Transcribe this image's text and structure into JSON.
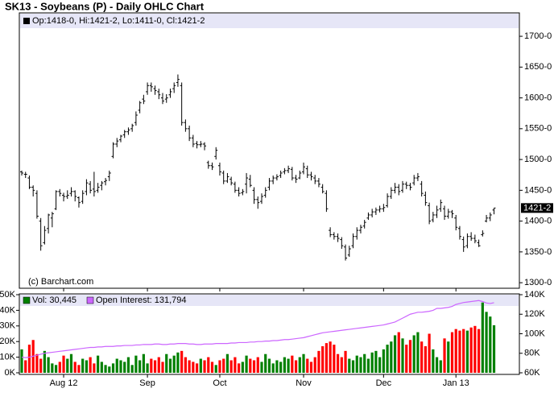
{
  "chart_data": [
    {
      "type": "ohlc",
      "title": "SK13 - Soybeans (P) - Daily OHLC Chart",
      "header": "Op:1418-0, Hi:1421-2, Lo:1411-0, Cl:1421-2",
      "credit": "(c) Barchart.com",
      "color": "#000000",
      "ylim": [
        1291,
        1738
      ],
      "yticks": [
        {
          "value": 1300,
          "label": "1300-0"
        },
        {
          "value": 1350,
          "label": "1350-0"
        },
        {
          "value": 1400,
          "label": "1400-0"
        },
        {
          "value": 1450,
          "label": "1450-0"
        },
        {
          "value": 1500,
          "label": "1500-0"
        },
        {
          "value": 1550,
          "label": "1550-0"
        },
        {
          "value": 1600,
          "label": "1600-0"
        },
        {
          "value": 1650,
          "label": "1650-0"
        },
        {
          "value": 1700,
          "label": "1700-0"
        }
      ],
      "last_price": {
        "value": 1421.25,
        "label": "1421-2"
      },
      "open": [
        1480,
        1476,
        1470,
        1455,
        1445,
        1400,
        1365,
        1388,
        1405,
        1420,
        1448,
        1442,
        1440,
        1445,
        1448,
        1438,
        1432,
        1448,
        1460,
        1452,
        1450,
        1458,
        1464,
        1472,
        1505,
        1525,
        1532,
        1540,
        1545,
        1550,
        1560,
        1580,
        1598,
        1610,
        1620,
        1615,
        1610,
        1600,
        1598,
        1605,
        1615,
        1625,
        1620,
        1560,
        1550,
        1535,
        1526,
        1524,
        1525,
        1495,
        1490,
        1505,
        1490,
        1478,
        1465,
        1468,
        1460,
        1450,
        1446,
        1460,
        1468,
        1450,
        1435,
        1432,
        1442,
        1455,
        1465,
        1470,
        1474,
        1480,
        1482,
        1484,
        1470,
        1470,
        1480,
        1485,
        1475,
        1470,
        1465,
        1455,
        1445,
        1385,
        1378,
        1375,
        1370,
        1358,
        1345,
        1360,
        1375,
        1385,
        1392,
        1405,
        1410,
        1415,
        1418,
        1420,
        1425,
        1440,
        1450,
        1455,
        1450,
        1460,
        1458,
        1462,
        1470,
        1460,
        1442,
        1425,
        1402,
        1410,
        1420,
        1420,
        1408,
        1415,
        1405,
        1388,
        1370,
        1360,
        1375,
        1372,
        1365,
        1378,
        1400,
        1405,
        1418
      ],
      "high": [
        1482,
        1480,
        1474,
        1458,
        1450,
        1405,
        1392,
        1412,
        1415,
        1450,
        1452,
        1446,
        1450,
        1455,
        1450,
        1440,
        1450,
        1468,
        1465,
        1480,
        1462,
        1465,
        1470,
        1482,
        1528,
        1535,
        1540,
        1548,
        1552,
        1558,
        1578,
        1595,
        1605,
        1625,
        1625,
        1620,
        1615,
        1608,
        1606,
        1615,
        1625,
        1638,
        1625,
        1565,
        1555,
        1540,
        1530,
        1530,
        1528,
        1498,
        1495,
        1520,
        1495,
        1482,
        1478,
        1472,
        1464,
        1455,
        1452,
        1478,
        1475,
        1455,
        1440,
        1445,
        1455,
        1470,
        1474,
        1476,
        1482,
        1486,
        1490,
        1488,
        1475,
        1482,
        1495,
        1490,
        1480,
        1475,
        1470,
        1460,
        1450,
        1390,
        1382,
        1380,
        1374,
        1362,
        1360,
        1380,
        1390,
        1394,
        1402,
        1414,
        1420,
        1422,
        1425,
        1428,
        1445,
        1455,
        1462,
        1460,
        1465,
        1464,
        1462,
        1475,
        1478,
        1465,
        1448,
        1430,
        1415,
        1425,
        1435,
        1425,
        1420,
        1418,
        1410,
        1392,
        1375,
        1380,
        1382,
        1378,
        1370,
        1385,
        1410,
        1414,
        1421.25
      ],
      "low": [
        1474,
        1470,
        1452,
        1440,
        1404,
        1352,
        1362,
        1380,
        1390,
        1418,
        1440,
        1432,
        1436,
        1440,
        1432,
        1422,
        1428,
        1442,
        1445,
        1440,
        1446,
        1450,
        1458,
        1465,
        1502,
        1520,
        1528,
        1535,
        1540,
        1545,
        1555,
        1575,
        1590,
        1605,
        1610,
        1605,
        1598,
        1590,
        1592,
        1600,
        1608,
        1618,
        1555,
        1545,
        1530,
        1520,
        1518,
        1520,
        1515,
        1485,
        1483,
        1500,
        1474,
        1460,
        1462,
        1458,
        1446,
        1440,
        1442,
        1445,
        1455,
        1428,
        1420,
        1428,
        1438,
        1450,
        1460,
        1466,
        1470,
        1476,
        1478,
        1466,
        1462,
        1468,
        1476,
        1470,
        1466,
        1460,
        1455,
        1445,
        1415,
        1374,
        1370,
        1366,
        1355,
        1336,
        1342,
        1356,
        1370,
        1380,
        1388,
        1402,
        1406,
        1410,
        1414,
        1415,
        1422,
        1436,
        1445,
        1442,
        1446,
        1452,
        1450,
        1458,
        1465,
        1440,
        1425,
        1395,
        1398,
        1405,
        1415,
        1402,
        1404,
        1405,
        1385,
        1370,
        1350,
        1356,
        1368,
        1364,
        1358,
        1375,
        1398,
        1400,
        1411
      ],
      "close": [
        1478,
        1476,
        1455,
        1450,
        1408,
        1360,
        1385,
        1410,
        1412,
        1448,
        1445,
        1440,
        1442,
        1448,
        1440,
        1430,
        1445,
        1462,
        1450,
        1448,
        1455,
        1462,
        1466,
        1478,
        1525,
        1530,
        1538,
        1545,
        1548,
        1555,
        1572,
        1592,
        1595,
        1620,
        1618,
        1612,
        1605,
        1595,
        1600,
        1610,
        1620,
        1630,
        1560,
        1550,
        1535,
        1525,
        1524,
        1525,
        1522,
        1490,
        1488,
        1515,
        1480,
        1465,
        1472,
        1462,
        1450,
        1445,
        1448,
        1470,
        1458,
        1435,
        1430,
        1440,
        1450,
        1465,
        1470,
        1472,
        1478,
        1482,
        1485,
        1470,
        1468,
        1478,
        1488,
        1475,
        1472,
        1465,
        1460,
        1448,
        1420,
        1378,
        1375,
        1372,
        1360,
        1340,
        1355,
        1375,
        1385,
        1390,
        1398,
        1410,
        1415,
        1418,
        1420,
        1422,
        1440,
        1450,
        1455,
        1448,
        1460,
        1458,
        1455,
        1470,
        1472,
        1445,
        1430,
        1400,
        1410,
        1418,
        1430,
        1408,
        1415,
        1412,
        1390,
        1375,
        1358,
        1375,
        1372,
        1368,
        1360,
        1380,
        1405,
        1410,
        1421.25
      ]
    },
    {
      "type": "bar",
      "categories": [
        null,
        null,
        null,
        null,
        null,
        null,
        null,
        null,
        null,
        null,
        null,
        "Aug 12",
        null,
        null,
        null,
        null,
        null,
        null,
        null,
        null,
        null,
        null,
        null,
        null,
        null,
        null,
        null,
        null,
        null,
        null,
        null,
        null,
        null,
        "Sep",
        null,
        null,
        null,
        null,
        null,
        null,
        null,
        null,
        null,
        null,
        null,
        null,
        null,
        null,
        null,
        null,
        null,
        null,
        "Oct",
        null,
        null,
        null,
        null,
        null,
        null,
        null,
        null,
        null,
        null,
        null,
        null,
        null,
        null,
        null,
        null,
        null,
        null,
        null,
        null,
        null,
        "Nov",
        null,
        null,
        null,
        null,
        null,
        null,
        null,
        null,
        null,
        null,
        null,
        null,
        null,
        null,
        null,
        null,
        null,
        null,
        null,
        null,
        "Dec",
        null,
        null,
        null,
        null,
        null,
        null,
        null,
        null,
        null,
        null,
        null,
        null,
        null,
        null,
        null,
        null,
        null,
        null,
        "Jan 13",
        null,
        null,
        null,
        null,
        null,
        null,
        null,
        null,
        null,
        null
      ],
      "ylim": [
        0,
        50000
      ],
      "yticks": [
        {
          "value": 0,
          "label": "0K"
        },
        {
          "value": 10000,
          "label": "10K"
        },
        {
          "value": 20000,
          "label": "20K"
        },
        {
          "value": 30000,
          "label": "30K"
        },
        {
          "value": 40000,
          "label": "40K"
        },
        {
          "value": 50000,
          "label": "50K"
        }
      ],
      "y2lim": [
        60000,
        140000
      ],
      "y2ticks": [
        {
          "value": 60000,
          "label": "60K"
        },
        {
          "value": 80000,
          "label": "80K"
        },
        {
          "value": 100000,
          "label": "100K"
        },
        {
          "value": 120000,
          "label": "120K"
        },
        {
          "value": 140000,
          "label": "140K"
        }
      ],
      "series": [
        {
          "name": "Vol: 30,445",
          "color": "#008000",
          "down_color": "#ff0000",
          "values": [
            15000,
            8000,
            18000,
            21000,
            12000,
            9000,
            14000,
            10000,
            6000,
            5000,
            7000,
            11000,
            9000,
            12000,
            7000,
            5000,
            9000,
            8000,
            10000,
            6000,
            11000,
            7000,
            5000,
            4000,
            6000,
            9000,
            8000,
            7000,
            10000,
            5000,
            11000,
            8000,
            12000,
            6000,
            9000,
            8000,
            10000,
            7000,
            12000,
            9000,
            11000,
            13000,
            14000,
            10000,
            8000,
            7000,
            6000,
            9000,
            8000,
            10000,
            7000,
            5000,
            8000,
            9000,
            12000,
            8000,
            10000,
            6000,
            7000,
            11000,
            9000,
            8000,
            10000,
            7000,
            12000,
            9000,
            6000,
            8000,
            7000,
            10000,
            9000,
            11000,
            8000,
            10000,
            12000,
            9000,
            7000,
            10000,
            14000,
            17000,
            19000,
            20000,
            18000,
            12000,
            10000,
            14000,
            9000,
            8000,
            11000,
            10000,
            12000,
            9000,
            13000,
            14000,
            10000,
            15000,
            18000,
            20000,
            24000,
            26000,
            22000,
            18000,
            21000,
            24000,
            26000,
            20000,
            17000,
            25000,
            15000,
            10000,
            8000,
            22000,
            20000,
            26000,
            28000,
            27000,
            28000,
            27000,
            29000,
            30000,
            28000,
            45000,
            39000,
            36000,
            30445
          ]
        },
        {
          "name": "Open Interest: 131,794",
          "color": "#cc66ff",
          "axis": "y2",
          "values": [
            76000,
            75500,
            76000,
            77000,
            78000,
            79000,
            80000,
            80500,
            81000,
            81500,
            82000,
            82500,
            83000,
            83500,
            84000,
            84500,
            85000,
            85500,
            86000,
            86000,
            86500,
            86500,
            87000,
            87000,
            87000,
            87500,
            87500,
            88000,
            88000,
            88000,
            88500,
            88500,
            89000,
            89000,
            89000,
            89500,
            89500,
            89000,
            89000,
            89500,
            89500,
            90000,
            90000,
            90000,
            89500,
            89500,
            89000,
            89000,
            89500,
            89500,
            89500,
            90000,
            90000,
            90000,
            90000,
            90500,
            90500,
            91000,
            91000,
            91000,
            91500,
            91500,
            92000,
            92000,
            92500,
            92500,
            93000,
            93000,
            93500,
            94000,
            94000,
            94500,
            95000,
            95500,
            96000,
            97000,
            98000,
            99000,
            100000,
            101000,
            101500,
            102000,
            102500,
            103000,
            103500,
            104000,
            104500,
            105000,
            105500,
            106000,
            106500,
            107000,
            107500,
            108000,
            108500,
            109000,
            110000,
            111000,
            112000,
            114000,
            116000,
            118000,
            120000,
            121000,
            122000,
            122000,
            122500,
            123000,
            124000,
            126000,
            126000,
            126500,
            127000,
            128000,
            130000,
            131000,
            132000,
            132500,
            133000,
            133500,
            134000,
            133000,
            131500,
            131000,
            131794
          ]
        }
      ]
    }
  ]
}
